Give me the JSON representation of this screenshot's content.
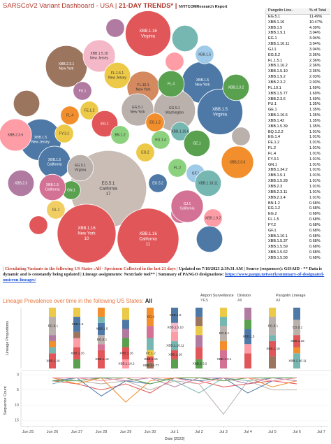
{
  "header": {
    "title": "SARSCoV2 Variant Dashboard - USA |",
    "subtitle": "21-DAY TRENDS* |",
    "source": "NYITCOMResearch Report"
  },
  "table": {
    "columns": [
      "Pangolin Line..",
      "% of Total"
    ],
    "rows": [
      [
        "EG.5.1",
        "11.49%"
      ],
      [
        "XBB.1.16",
        "10.47%"
      ],
      [
        "XBB.1.5",
        "4.39%"
      ],
      [
        "XBB.1.9.1",
        "3.04%"
      ],
      [
        "EG.1",
        "3.04%"
      ],
      [
        "XBB.1.16.11",
        "3.04%"
      ],
      [
        "GJ.1",
        "3.04%"
      ],
      [
        "EG.5.2",
        "2.36%"
      ],
      [
        "FL.1.5.1",
        "2.36%"
      ],
      [
        "XBB.1.16.2",
        "2.36%"
      ],
      [
        "XBB.1.5.10",
        "2.36%"
      ],
      [
        "XBB.1.9.2",
        "2.03%"
      ],
      [
        "XBB.2.3.2",
        "2.03%"
      ],
      [
        "FL.10.1",
        "1.69%"
      ],
      [
        "XBB.1.5.77",
        "1.69%"
      ],
      [
        "XBB.2.3.6",
        "1.69%"
      ],
      [
        "FU.1",
        "1.35%"
      ],
      [
        "GE.1",
        "1.35%"
      ],
      [
        "XBB.1.16.6",
        "1.35%"
      ],
      [
        "XBB.1.42",
        "1.35%"
      ],
      [
        "XBB.1.5.39",
        "1.35%"
      ],
      [
        "BQ.1.2.2",
        "1.01%"
      ],
      [
        "EG.1.4",
        "1.01%"
      ],
      [
        "FE.1.2",
        "1.01%"
      ],
      [
        "FL.2",
        "1.01%"
      ],
      [
        "FL.4",
        "1.01%"
      ],
      [
        "FY.3.1",
        "1.01%"
      ],
      [
        "GN.1",
        "1.01%"
      ],
      [
        "XBB.1.34.2",
        "1.01%"
      ],
      [
        "XBB.1.5.1",
        "1.01%"
      ],
      [
        "XBB.1.5.28",
        "1.01%"
      ],
      [
        "XBB.2.3",
        "1.01%"
      ],
      [
        "XBB.2.3.11",
        "1.01%"
      ],
      [
        "XBB.2.3.4",
        "1.01%"
      ],
      [
        "BN.1.2",
        "0.68%"
      ],
      [
        "EG.1.2",
        "0.68%"
      ],
      [
        "EG.2",
        "0.68%"
      ],
      [
        "FL.1.5",
        "0.68%"
      ],
      [
        "FY.2",
        "0.68%"
      ],
      [
        "GF.1",
        "0.68%"
      ],
      [
        "XBB.1.16.1",
        "0.68%"
      ],
      [
        "XBB.1.5.37",
        "0.68%"
      ],
      [
        "XBB.1.5.59",
        "0.68%"
      ],
      [
        "XBB.1.5.62",
        "0.68%"
      ],
      [
        "XBB.1.5.58",
        "0.68%"
      ]
    ]
  },
  "note": [
    {
      "text": "| Circulating Variants in the following US States :All - Specimen Collected in the last 21 days |",
      "color": "#c0392b"
    },
    {
      "text": "Updated on 7/18/2023 2:39:31 AM | Source (sequences): GISAID - ** Data is dynamic and is constantly being updated | Lineage assignments: Nextclade tool** | Summary of PANGO designations:",
      "color": "#222222"
    },
    {
      "text": "https://www.pango.network/summary-of-designated-omicron-lineages/",
      "color": "#1a4fd6"
    }
  ],
  "section_title": {
    "text": "Lineage Prevalence over time in the following US States:",
    "value": "All"
  },
  "filters": [
    {
      "label": "Airport Surveillance",
      "value": "YES"
    },
    {
      "label": "Division",
      "value": "All"
    },
    {
      "label": "Pangolin Lineage",
      "value": "All"
    }
  ],
  "chart_data": [
    {
      "type": "bubble",
      "bubbles": [
        {
          "lineage": "EG.5.1",
          "state": "California",
          "count": 17,
          "color": "#c9bdb6"
        },
        {
          "lineage": "XBB.1.16",
          "state": "California",
          "count": 11,
          "color": "#e15759"
        },
        {
          "lineage": "XBB.1.16",
          "state": "New York",
          "count": 10,
          "color": "#e15759"
        },
        {
          "lineage": "XBB.1.16",
          "state": "Virginia",
          "value": 6,
          "color": "#e15759"
        },
        {
          "lineage": "XBB.1.5",
          "state": "New York",
          "value": 5,
          "color": "#4e79a7"
        },
        {
          "lineage": "XBB.1.5",
          "state": "Virginia",
          "value": 6,
          "color": "#4e79a7"
        },
        {
          "lineage": "XBB.2.3.1",
          "state": "New York",
          "value": 5,
          "color": "#9c755f"
        },
        {
          "lineage": "XBB.1.5.10",
          "state": "New Jersey",
          "value": 3,
          "color": "#f4b8c8"
        },
        {
          "lineage": "EG.5.1",
          "state": "Washington",
          "value": 5,
          "color": "#bab0ac"
        },
        {
          "lineage": "FL.10.1",
          "state": "New York",
          "value": 3,
          "color": "#d4895f"
        },
        {
          "lineage": "FL.1.5.1",
          "state": "New Jersey",
          "value": 2,
          "color": "#edc948"
        },
        {
          "lineage": "FL.4",
          "value": 2,
          "color": "#59a14f"
        },
        {
          "lineage": "XBB.2.3.2",
          "value": 2,
          "color": "#59a14f"
        },
        {
          "lineage": "XBB.1.5",
          "value": 1,
          "color": "#a0cbe8"
        },
        {
          "lineage": "EG.5.1",
          "state": "New York",
          "value": 3,
          "color": "#bab0ac"
        },
        {
          "lineage": "XBB.1.5",
          "state": "New Jersey",
          "value": 5,
          "color": "#4e79a7"
        },
        {
          "lineage": "XBB.2.3.6",
          "value": 3,
          "color": "#ff9da7"
        },
        {
          "lineage": "FU.1",
          "value": 1,
          "color": "#b07aa1"
        },
        {
          "lineage": "FL.4",
          "value": 1,
          "color": "#f28e2b"
        },
        {
          "lineage": "FE.1.2",
          "value": 1,
          "color": "#edc948"
        },
        {
          "lineage": "EG.1",
          "value": 2,
          "color": "#e15759"
        },
        {
          "lineage": "FY.3.1",
          "value": 1,
          "color": "#edc948"
        },
        {
          "lineage": "BN.1.2",
          "value": 1,
          "color": "#8cd17d"
        },
        {
          "lineage": "EG.1.2",
          "value": 1,
          "color": "#f28e2b"
        },
        {
          "lineage": "XBB.1.16.6",
          "value": 1,
          "color": "#76b7b2"
        },
        {
          "lineage": "GE.1",
          "value": 2,
          "color": "#59a14f"
        },
        {
          "lineage": "EG.1.4",
          "value": 1,
          "color": "#8cd17d"
        },
        {
          "lineage": "EG.2",
          "value": 1,
          "color": "#edc948"
        },
        {
          "lineage": "XBB.1.5",
          "state": "California",
          "value": 3,
          "color": "#4e79a7"
        },
        {
          "lineage": "EG.5.1",
          "state": "Virginia",
          "value": 2,
          "color": "#bab0ac"
        },
        {
          "lineage": "FL.2",
          "value": 1,
          "color": "#8cd17d"
        },
        {
          "lineage": "GF.1",
          "value": 1,
          "color": "#a0cbe8"
        },
        {
          "lineage": "XBB.2.3.6",
          "value": 3,
          "color": "#f28e2b"
        },
        {
          "lineage": "XBB.1.16.11",
          "value": 2,
          "color": "#76b7b2"
        },
        {
          "lineage": "GN.1",
          "value": 1,
          "color": "#59a14f"
        },
        {
          "lineage": "XBB.2.3",
          "value": 2,
          "color": "#b07aa1"
        },
        {
          "lineage": "XBB.1.5",
          "state": "California",
          "value": 2,
          "color": "#d37295"
        },
        {
          "lineage": "GL.1",
          "value": 1,
          "color": "#f1ce63"
        },
        {
          "lineage": "GJ.1",
          "value": 1,
          "color": "#d37295"
        },
        {
          "lineage": "EG.5.2",
          "value": 1,
          "color": "#4e79a7"
        },
        {
          "lineage": "GJ.1",
          "state": "California",
          "value": 3,
          "color": "#d37295"
        },
        {
          "lineage": "XBB.1.9.2",
          "value": 1,
          "color": "#ff9da7"
        },
        {
          "lineage": null,
          "value": 2,
          "color": "#9c755f"
        },
        {
          "lineage": null,
          "value": 1,
          "color": "#bab0ac"
        },
        {
          "lineage": null,
          "value": 1,
          "color": "#e15759"
        },
        {
          "lineage": null,
          "value": 2,
          "color": "#4e79a7"
        },
        {
          "lineage": null,
          "value": 1,
          "color": "#ff9da7"
        },
        {
          "lineage": null,
          "value": 1,
          "color": "#b07aa1"
        },
        {
          "lineage": null,
          "value": 2,
          "color": "#76b7b2"
        }
      ]
    },
    {
      "type": "stacked_bar",
      "y_label": "Lineage Proportions",
      "ylim": [
        0,
        1
      ],
      "stacks": [
        null,
        [
          {
            "label": "XBB.1.16",
            "color": "#e15759",
            "value": 0.25
          },
          {
            "label": null,
            "color": "#76b7b2",
            "value": 0.1
          },
          {
            "label": null,
            "color": "#f28e2b",
            "value": 0.1
          },
          {
            "label": null,
            "color": "#b07aa1",
            "value": 0.1
          },
          {
            "label": "EG.5.1",
            "color": "#bab0ac",
            "value": 0.3
          },
          {
            "label": null,
            "color": "#edc948",
            "value": 0.15
          }
        ],
        [
          {
            "label": null,
            "color": "#59a14f",
            "value": 0.15
          },
          {
            "label": "XBB.1.16",
            "color": "#e15759",
            "value": 0.2
          },
          {
            "label": null,
            "color": "#ff9da7",
            "value": 0.15
          },
          {
            "label": null,
            "color": "#9c755f",
            "value": 0.1
          },
          {
            "label": "XBB.1.5",
            "color": "#4e79a7",
            "value": 0.25
          },
          {
            "label": null,
            "color": "#edc948",
            "value": 0.15
          }
        ],
        [
          {
            "label": "XBB.1.16",
            "color": "#e15759",
            "value": 0.3
          },
          {
            "label": null,
            "color": "#d37295",
            "value": 0.1
          },
          {
            "label": "EG.5.1",
            "color": "#bab0ac",
            "value": 0.15
          },
          {
            "label": "XBB.1.5",
            "color": "#4e79a7",
            "value": 0.2
          },
          {
            "label": null,
            "color": "#76b7b2",
            "value": 0.1
          },
          {
            "label": null,
            "color": "#f28e2b",
            "value": 0.15
          }
        ],
        [
          {
            "label": "XBB.1.16.2",
            "color": "#ff9da7",
            "value": 0.15
          },
          {
            "label": "XBB.1.16",
            "color": "#e15759",
            "value": 0.2
          },
          {
            "label": null,
            "color": "#59a14f",
            "value": 0.15
          },
          {
            "label": null,
            "color": "#b07aa1",
            "value": 0.15
          },
          {
            "label": null,
            "color": "#4e79a7",
            "value": 0.15
          },
          {
            "label": null,
            "color": "#edc948",
            "value": 0.2
          }
        ],
        [
          {
            "label": "XBB.1.5.77",
            "color": "#9c755f",
            "value": 0.1
          },
          {
            "label": "XBB.1.16",
            "color": "#e15759",
            "value": 0.1
          },
          {
            "label": "FE.1.2",
            "color": "#edc948",
            "value": 0.1
          },
          {
            "label": null,
            "color": "#76b7b2",
            "value": 0.2
          },
          {
            "label": null,
            "color": "#d37295",
            "value": 0.2
          },
          {
            "label": "EG.4",
            "color": "#f28e2b",
            "value": 0.3
          }
        ],
        [
          {
            "label": null,
            "color": "#59a14f",
            "value": 0.15
          },
          {
            "label": "XBB.1.16",
            "color": "#e15759",
            "value": 0.15
          },
          {
            "label": "XBB.1.16.11",
            "color": "#76b7b2",
            "value": 0.15
          },
          {
            "label": null,
            "color": "#ff9da7",
            "value": 0.15
          },
          {
            "label": "XBB.1.5.10",
            "color": "#f4b8c8",
            "value": 0.15
          },
          {
            "label": "XBB.1.5",
            "color": "#4e79a7",
            "value": 0.25
          }
        ],
        [
          {
            "label": "XBB.2.3.2",
            "color": "#59a14f",
            "value": 0.15
          },
          {
            "label": null,
            "color": "#e15759",
            "value": 0.2
          },
          {
            "label": null,
            "color": "#b07aa1",
            "value": 0.2
          },
          {
            "label": null,
            "color": "#edc948",
            "value": 0.15
          },
          {
            "label": null,
            "color": "#9c755f",
            "value": 0.15
          },
          {
            "label": null,
            "color": "#4e79a7",
            "value": 0.15
          }
        ],
        [
          {
            "label": "XBB.1.9.1",
            "color": "#d37295",
            "value": 0.3
          },
          {
            "label": null,
            "color": "#f28e2b",
            "value": 0.15
          },
          {
            "label": "EG.5.1",
            "color": "#bab0ac",
            "value": 0.25
          },
          {
            "label": null,
            "color": "#76b7b2",
            "value": 0.15
          },
          {
            "label": null,
            "color": "#edc948",
            "value": 0.15
          }
        ],
        [
          {
            "label": null,
            "color": "#e15759",
            "value": 0.25
          },
          {
            "label": null,
            "color": "#ff9da7",
            "value": 0.15
          },
          {
            "label": "XBB.1.5",
            "color": "#4e79a7",
            "value": 0.25
          },
          {
            "label": null,
            "color": "#59a14f",
            "value": 0.15
          },
          {
            "label": null,
            "color": "#b07aa1",
            "value": 0.2
          }
        ],
        [
          {
            "label": null,
            "color": "#9c755f",
            "value": 0.2
          },
          {
            "label": "XBB.1.16",
            "color": "#e15759",
            "value": 0.25
          },
          {
            "label": null,
            "color": "#76b7b2",
            "value": 0.1
          },
          {
            "label": "EG.5.1",
            "color": "#bab0ac",
            "value": 0.3
          },
          {
            "label": null,
            "color": "#edc948",
            "value": 0.15
          }
        ],
        [
          {
            "label": "XBB.1.16.11",
            "color": "#76b7b2",
            "value": 0.25
          },
          {
            "label": null,
            "color": "#f28e2b",
            "value": 0.1
          },
          {
            "label": "XBB.1.16",
            "color": "#e15759",
            "value": 0.2
          },
          {
            "label": "EG.5.1",
            "color": "#bab0ac",
            "value": 0.25
          },
          {
            "label": null,
            "color": "#4e79a7",
            "value": 0.2
          }
        ],
        null
      ]
    },
    {
      "type": "line",
      "y_label": "Sequence Count",
      "x_label": "Date [2023]",
      "y_reversed": true,
      "grid": true,
      "categories": [
        "Jun 25",
        "Jun 26",
        "Jun 27",
        "Jun 28",
        "Jun 29",
        "Jun 30",
        "Jul 1",
        "Jul 2",
        "Jul 3",
        "Jul 4",
        "Jul 5",
        "Jul 6",
        "Jul 7"
      ],
      "ylim": [
        0,
        17
      ],
      "yticks": [
        0,
        5,
        10,
        15
      ],
      "series": [
        {
          "color": "#e15759",
          "values": [
            null,
            2,
            3,
            5,
            3,
            6,
            1,
            2,
            4,
            3,
            2,
            3,
            null
          ]
        },
        {
          "color": "#bab0ac",
          "values": [
            null,
            1,
            2,
            3,
            2,
            5,
            2,
            3,
            13,
            2,
            5,
            5,
            null
          ]
        },
        {
          "color": "#4e79a7",
          "values": [
            null,
            2,
            1,
            7,
            2,
            3,
            1,
            2,
            1,
            6,
            2,
            1,
            null
          ]
        },
        {
          "color": "#f28e2b",
          "values": [
            null,
            1,
            3,
            1,
            9,
            2,
            1,
            1,
            2,
            1,
            4,
            2,
            null
          ]
        },
        {
          "color": "#76b7b2",
          "values": [
            null,
            3,
            1,
            2,
            1,
            1,
            2,
            6,
            1,
            2,
            1,
            1,
            null
          ]
        },
        {
          "color": "#b07aa1",
          "values": [
            null,
            1,
            1,
            1,
            2,
            1,
            4,
            1,
            1,
            3,
            1,
            2,
            null
          ]
        },
        {
          "color": "#59a14f",
          "values": [
            null,
            2,
            2,
            1,
            1,
            3,
            1,
            1,
            2,
            1,
            1,
            1,
            null
          ]
        },
        {
          "color": "#ff9da7",
          "values": [
            null,
            1,
            1,
            2,
            1,
            1,
            1,
            3,
            1,
            1,
            2,
            1,
            null
          ]
        }
      ]
    }
  ]
}
